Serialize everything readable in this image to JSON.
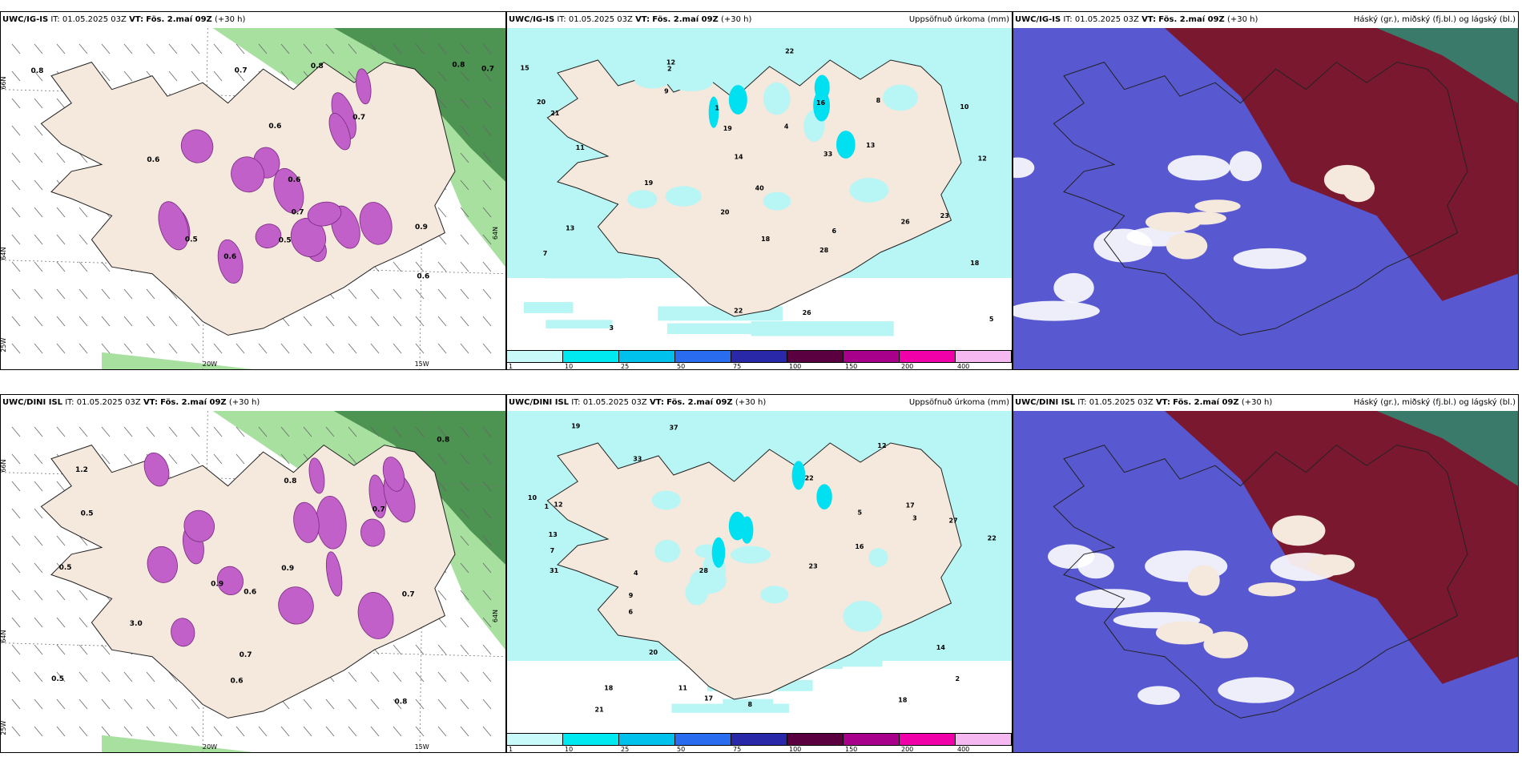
{
  "rows": [
    {
      "model": "UWC/IG-IS",
      "it_label": "IT:",
      "it_value": "01.05.2025 03Z",
      "vt_label": "VT:",
      "vt_value": "Fös. 2.maí 09Z",
      "lead": "(+30 h)",
      "precip_title": "Uppsöfnuð úrkoma (mm)",
      "cloud_title": "Háský (gr.), miðský (fj.bl.) og lágský (bl.)",
      "lon_labels": [
        "20W",
        "15W"
      ],
      "lat_labels": [
        "66N",
        "64N",
        "25W",
        "64N"
      ],
      "visibility_labels": [
        "0.7",
        "0.6",
        "0.7",
        "0.6",
        "0.8",
        "0.9",
        "0.5",
        "0.6",
        "0.7",
        "0.8",
        "0.5",
        "0.6",
        "0.6",
        "0.7",
        "0.8"
      ],
      "precip_labels": [
        "4",
        "2",
        "10",
        "12",
        "13",
        "11",
        "40",
        "19",
        "28",
        "22",
        "33",
        "26",
        "18",
        "21",
        "12",
        "15",
        "20",
        "14",
        "19",
        "23",
        "26",
        "16",
        "18",
        "13",
        "20",
        "22",
        "3",
        "5",
        "7",
        "9",
        "6",
        "8",
        "1"
      ]
    },
    {
      "model": "UWC/DINI ISL",
      "it_label": "IT:",
      "it_value": "01.05.2025 03Z",
      "vt_label": "VT:",
      "vt_value": "Fös. 2.maí 09Z",
      "lead": "(+30 h)",
      "precip_title": "Uppsöfnuð úrkoma (mm)",
      "cloud_title": "Háský (gr.), miðský (fj.bl.) og lágský (bl.)",
      "lon_labels": [
        "20W",
        "15W"
      ],
      "lat_labels": [
        "66N",
        "64N",
        "25W",
        "64N"
      ],
      "visibility_labels": [
        "0.8",
        "0.5",
        "0.7",
        "0.9",
        "0.6",
        "0.8",
        "0.5",
        "0.7",
        "1.2",
        "0.5",
        "0.6",
        "0.8",
        "0.9",
        "0.7",
        "3.0"
      ],
      "precip_labels": [
        "6",
        "3",
        "17",
        "12",
        "11",
        "16",
        "33",
        "23",
        "27",
        "31",
        "22",
        "37",
        "14",
        "18",
        "20",
        "10",
        "28",
        "19",
        "17",
        "13",
        "21",
        "22",
        "18",
        "12",
        "5",
        "7",
        "9",
        "8",
        "1",
        "2",
        "4"
      ]
    }
  ],
  "colorbar": {
    "ticks": [
      "1",
      "10",
      "25",
      "50",
      "75",
      "100",
      "150",
      "200",
      "400"
    ],
    "colors": [
      "#c8fafa",
      "#00e8f0",
      "#00c0ec",
      "#2a6cf0",
      "#2828a8",
      "#5a0040",
      "#a8008a",
      "#f000a8",
      "#f5b8f0"
    ]
  },
  "colors": {
    "land": "#f5e8dc",
    "green_dark": "#2f7a38",
    "green_light": "#a8e0a0",
    "precip_bg": "#b8f5f5",
    "precip_mid": "#00e0f0",
    "magenta": "#c060c8",
    "cloud_blue": "#5858d0",
    "cloud_red": "#7a1830",
    "cloud_sea": "#3a7a6a"
  }
}
